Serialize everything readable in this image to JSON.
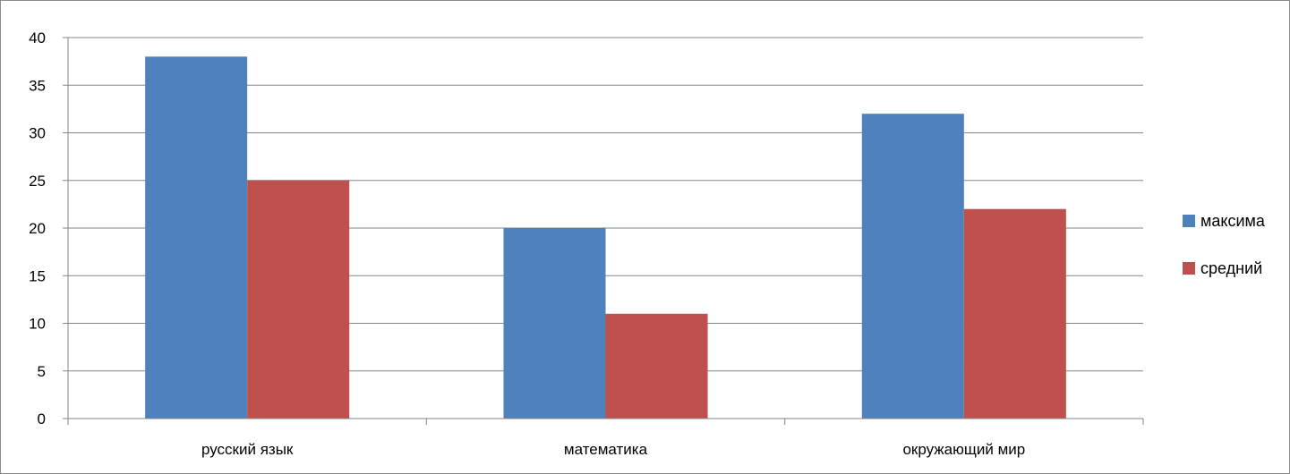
{
  "chart_data": {
    "type": "bar",
    "categories": [
      "русский язык",
      "математика",
      "окружающий мир"
    ],
    "series": [
      {
        "name": "максима",
        "values": [
          38,
          20,
          32
        ],
        "color": "#4f81bd"
      },
      {
        "name": "средний",
        "values": [
          25,
          11,
          22
        ],
        "color": "#c0504d"
      }
    ],
    "ylim": [
      0,
      40
    ],
    "yticks": [
      0,
      5,
      10,
      15,
      20,
      25,
      30,
      35,
      40
    ],
    "grid": true,
    "legend": "right"
  }
}
